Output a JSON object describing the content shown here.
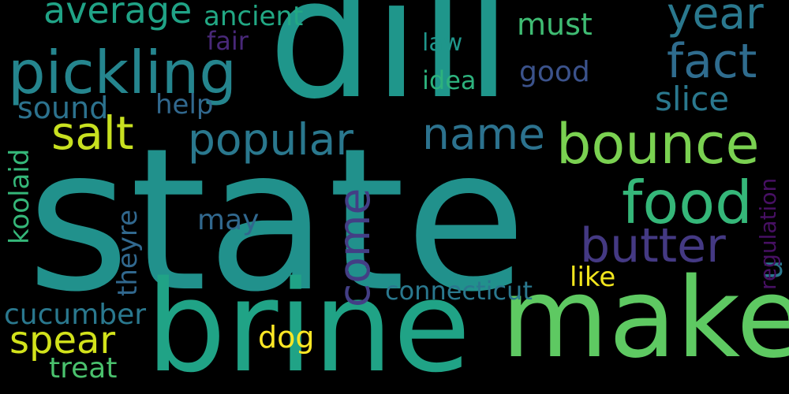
{
  "words": [
    {
      "id": "state",
      "text": "state",
      "color": "#21918c"
    },
    {
      "id": "dill",
      "text": "dill",
      "color": "#1f968b"
    },
    {
      "id": "brine",
      "text": "brine",
      "color": "#20a386"
    },
    {
      "id": "make",
      "text": "make",
      "color": "#5ec962"
    },
    {
      "id": "pickling",
      "text": "pickling",
      "color": "#25858e"
    },
    {
      "id": "bounce",
      "text": "bounce",
      "color": "#7ad151"
    },
    {
      "id": "food",
      "text": "food",
      "color": "#35b779"
    },
    {
      "id": "salt",
      "text": "salt",
      "color": "#c8e020"
    },
    {
      "id": "popular",
      "text": "popular",
      "color": "#2a788e"
    },
    {
      "id": "name",
      "text": "name",
      "color": "#2c728e"
    },
    {
      "id": "butter",
      "text": "butter",
      "color": "#443983"
    },
    {
      "id": "fact",
      "text": "fact",
      "color": "#2f6c8e"
    },
    {
      "id": "year",
      "text": "year",
      "color": "#2a788e"
    },
    {
      "id": "slice",
      "text": "slice",
      "color": "#2a788e"
    },
    {
      "id": "average",
      "text": "average",
      "color": "#20a386"
    },
    {
      "id": "ancient",
      "text": "ancient",
      "color": "#22a884"
    },
    {
      "id": "must",
      "text": "must",
      "color": "#3fbc73"
    },
    {
      "id": "fair",
      "text": "fair",
      "color": "#482878"
    },
    {
      "id": "law",
      "text": "law",
      "color": "#1f968b"
    },
    {
      "id": "good",
      "text": "good",
      "color": "#3b528b"
    },
    {
      "id": "idea",
      "text": "idea",
      "color": "#2db27d"
    },
    {
      "id": "help",
      "text": "help",
      "color": "#31688e"
    },
    {
      "id": "sound",
      "text": "sound",
      "color": "#2c728e"
    },
    {
      "id": "spear",
      "text": "spear",
      "color": "#d2e21b"
    },
    {
      "id": "cucumber",
      "text": "cucumber",
      "color": "#2a788e"
    },
    {
      "id": "treat",
      "text": "treat",
      "color": "#4ac16d"
    },
    {
      "id": "dog",
      "text": "dog",
      "color": "#fde725"
    },
    {
      "id": "may",
      "text": "may",
      "color": "#31688e"
    },
    {
      "id": "like",
      "text": "like",
      "color": "#f1e51d"
    },
    {
      "id": "connecticut",
      "text": "connecticut",
      "color": "#2a788e"
    },
    {
      "id": "come",
      "text": "come",
      "color": "#433e85"
    },
    {
      "id": "u",
      "text": "u",
      "color": "#2a788e"
    },
    {
      "id": "koolaid",
      "text": "koolaid",
      "color": "#35b779"
    },
    {
      "id": "theyre",
      "text": "theyre",
      "color": "#31688e"
    },
    {
      "id": "regulation",
      "text": "regulation",
      "color": "#471063"
    }
  ]
}
